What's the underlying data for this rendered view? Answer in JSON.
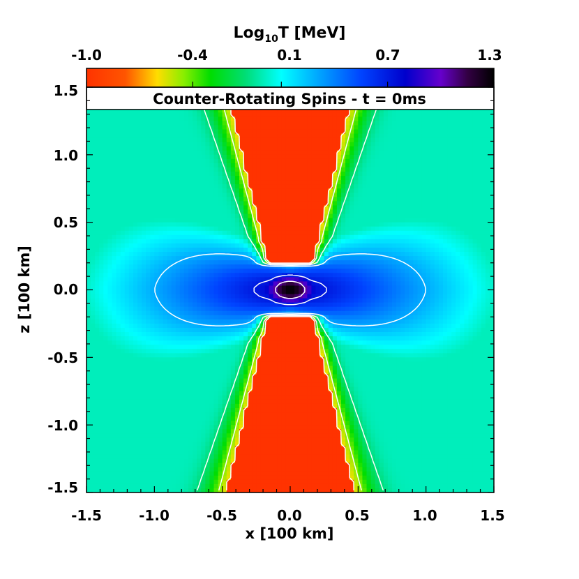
{
  "chart_data": {
    "type": "heatmap",
    "title": "Counter-Rotating Spins - t = 0ms",
    "xlabel": "x [100 km]",
    "ylabel": "z [100 km]",
    "xlim": [
      -1.5,
      1.5
    ],
    "ylim": [
      -1.5,
      1.5
    ],
    "xticks": [
      "-1.5",
      "-1.0",
      "-0.5",
      "0.0",
      "0.5",
      "1.0",
      "1.5"
    ],
    "yticks": [
      "-1.5",
      "-1.0",
      "-0.5",
      "0.0",
      "0.5",
      "1.0",
      "1.5"
    ],
    "colorbar": {
      "label_prefix": "Log",
      "label_sub": "10",
      "label_suffix": "T [MeV]",
      "range": [
        -1.0,
        1.3
      ],
      "ticks": [
        "-1.0",
        "-0.4",
        "0.1",
        "0.7",
        "1.3"
      ],
      "stops": [
        {
          "value": -1.0,
          "color": "#ff3300"
        },
        {
          "value": -0.78,
          "color": "#ff5500"
        },
        {
          "value": -0.6,
          "color": "#ffdd00"
        },
        {
          "value": -0.45,
          "color": "#88ee00"
        },
        {
          "value": -0.3,
          "color": "#00dd00"
        },
        {
          "value": -0.1,
          "color": "#00dd77"
        },
        {
          "value": 0.1,
          "color": "#00ffff"
        },
        {
          "value": 0.3,
          "color": "#00aaff"
        },
        {
          "value": 0.55,
          "color": "#0044ff"
        },
        {
          "value": 0.8,
          "color": "#0000cc"
        },
        {
          "value": 1.0,
          "color": "#6600cc"
        },
        {
          "value": 1.15,
          "color": "#330044"
        },
        {
          "value": 1.3,
          "color": "#000000"
        }
      ]
    },
    "field_model": "torus-shaped hot disk centered at origin with cold funnels along the z axis",
    "contour_levels": [
      -0.78,
      -0.45,
      -0.1,
      0.3,
      0.7,
      1.05
    ]
  }
}
